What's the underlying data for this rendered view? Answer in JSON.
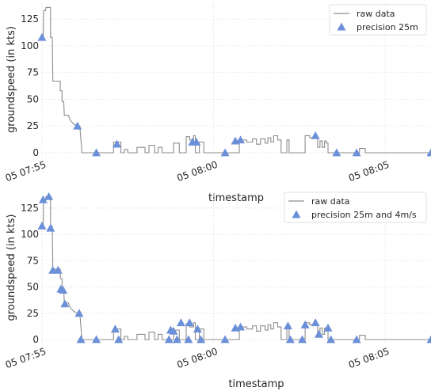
{
  "chart_data": [
    {
      "type": "line",
      "xlabel": "",
      "ylabel": "groundspeed (in kts)",
      "ylim": [
        -3,
        140
      ],
      "yticks": [
        0,
        25,
        50,
        75,
        100,
        125
      ],
      "xticks": [
        {
          "label": "05 07:55",
          "t": 0
        },
        {
          "label": "05 08:00",
          "t": 300
        },
        {
          "label": "05 08:05",
          "t": 600
        }
      ],
      "xlim": [
        0,
        680
      ],
      "grid": true,
      "legend_position": "top-right",
      "legend": [
        "raw data",
        "precision 25m"
      ],
      "series": [
        {
          "name": "raw data",
          "color": "#8c8c8c",
          "points": [
            [
              0,
              108
            ],
            [
              2,
              108
            ],
            [
              3,
              133
            ],
            [
              6,
              133
            ],
            [
              7,
              136
            ],
            [
              15,
              136
            ],
            [
              15,
              108
            ],
            [
              18,
              108
            ],
            [
              19,
              67
            ],
            [
              32,
              67
            ],
            [
              32,
              58
            ],
            [
              35,
              58
            ],
            [
              35,
              48
            ],
            [
              38,
              48
            ],
            [
              39,
              35
            ],
            [
              46,
              35
            ],
            [
              50,
              30
            ],
            [
              55,
              27
            ],
            [
              62,
              25
            ],
            [
              66,
              25
            ],
            [
              70,
              0
            ],
            [
              125,
              0
            ],
            [
              125,
              10
            ],
            [
              138,
              10
            ],
            [
              138,
              0
            ],
            [
              144,
              0
            ],
            [
              144,
              3
            ],
            [
              150,
              3
            ],
            [
              150,
              0
            ],
            [
              166,
              0
            ],
            [
              166,
              5
            ],
            [
              180,
              5
            ],
            [
              180,
              0
            ],
            [
              187,
              0
            ],
            [
              187,
              7
            ],
            [
              197,
              7
            ],
            [
              197,
              0
            ],
            [
              203,
              0
            ],
            [
              203,
              5
            ],
            [
              210,
              5
            ],
            [
              210,
              0
            ],
            [
              230,
              0
            ],
            [
              230,
              9
            ],
            [
              240,
              9
            ],
            [
              240,
              0
            ],
            [
              252,
              0
            ],
            [
              252,
              15
            ],
            [
              258,
              15
            ],
            [
              258,
              12
            ],
            [
              265,
              12
            ],
            [
              265,
              16
            ],
            [
              268,
              16
            ],
            [
              268,
              0
            ],
            [
              275,
              0
            ],
            [
              275,
              10
            ],
            [
              283,
              10
            ],
            [
              283,
              0
            ],
            [
              345,
              0
            ],
            [
              345,
              12
            ],
            [
              358,
              12
            ],
            [
              358,
              10
            ],
            [
              368,
              10
            ],
            [
              368,
              13
            ],
            [
              375,
              13
            ],
            [
              375,
              8
            ],
            [
              382,
              8
            ],
            [
              382,
              13
            ],
            [
              390,
              13
            ],
            [
              390,
              9
            ],
            [
              395,
              9
            ],
            [
              395,
              14
            ],
            [
              400,
              14
            ],
            [
              400,
              10
            ],
            [
              405,
              10
            ],
            [
              405,
              16
            ],
            [
              412,
              16
            ],
            [
              412,
              12
            ],
            [
              418,
              12
            ],
            [
              418,
              0
            ],
            [
              428,
              0
            ],
            [
              428,
              12
            ],
            [
              432,
              12
            ],
            [
              432,
              0
            ],
            [
              460,
              0
            ],
            [
              460,
              16
            ],
            [
              468,
              16
            ],
            [
              468,
              14
            ],
            [
              482,
              14
            ],
            [
              482,
              5
            ],
            [
              486,
              5
            ],
            [
              486,
              11
            ],
            [
              490,
              11
            ],
            [
              490,
              5
            ],
            [
              494,
              5
            ],
            [
              494,
              11
            ],
            [
              497,
              11
            ],
            [
              497,
              9
            ],
            [
              500,
              9
            ],
            [
              500,
              0
            ],
            [
              555,
              0
            ],
            [
              555,
              4
            ],
            [
              565,
              4
            ],
            [
              565,
              0
            ],
            [
              680,
              0
            ]
          ]
        },
        {
          "name": "precision 25m",
          "color": "#6b8fd9",
          "points": [
            [
              0,
              108
            ],
            [
              62,
              25
            ],
            [
              95,
              0
            ],
            [
              131,
              8
            ],
            [
              263,
              10
            ],
            [
              270,
              10
            ],
            [
              320,
              0
            ],
            [
              338,
              11
            ],
            [
              347,
              12
            ],
            [
              478,
              16
            ],
            [
              515,
              0
            ],
            [
              550,
              0
            ],
            [
              680,
              0
            ]
          ]
        }
      ]
    },
    {
      "type": "line",
      "xlabel": "timestamp",
      "ylabel": "groundspeed (in kts)",
      "ylim": [
        -3,
        140
      ],
      "yticks": [
        0,
        25,
        50,
        75,
        100,
        125
      ],
      "xticks": [
        {
          "label": "05 07:55",
          "t": 0
        },
        {
          "label": "05 08:00",
          "t": 300
        },
        {
          "label": "05 08:05",
          "t": 600
        }
      ],
      "xlim": [
        0,
        680
      ],
      "grid": true,
      "legend_position": "top-right",
      "legend": [
        "raw data",
        "precision 25m and 4m/s"
      ],
      "series": [
        {
          "name": "raw data",
          "color": "#8c8c8c",
          "points": [
            [
              0,
              108
            ],
            [
              2,
              108
            ],
            [
              3,
              133
            ],
            [
              6,
              133
            ],
            [
              7,
              136
            ],
            [
              15,
              136
            ],
            [
              15,
              108
            ],
            [
              18,
              108
            ],
            [
              19,
              67
            ],
            [
              32,
              67
            ],
            [
              32,
              58
            ],
            [
              35,
              58
            ],
            [
              35,
              48
            ],
            [
              38,
              48
            ],
            [
              39,
              35
            ],
            [
              46,
              35
            ],
            [
              50,
              30
            ],
            [
              55,
              27
            ],
            [
              62,
              25
            ],
            [
              66,
              25
            ],
            [
              70,
              0
            ],
            [
              125,
              0
            ],
            [
              125,
              10
            ],
            [
              138,
              10
            ],
            [
              138,
              0
            ],
            [
              144,
              0
            ],
            [
              144,
              3
            ],
            [
              150,
              3
            ],
            [
              150,
              0
            ],
            [
              166,
              0
            ],
            [
              166,
              5
            ],
            [
              180,
              5
            ],
            [
              180,
              0
            ],
            [
              187,
              0
            ],
            [
              187,
              7
            ],
            [
              197,
              7
            ],
            [
              197,
              0
            ],
            [
              203,
              0
            ],
            [
              203,
              5
            ],
            [
              210,
              5
            ],
            [
              210,
              0
            ],
            [
              230,
              0
            ],
            [
              230,
              9
            ],
            [
              240,
              9
            ],
            [
              240,
              0
            ],
            [
              252,
              0
            ],
            [
              252,
              15
            ],
            [
              258,
              15
            ],
            [
              258,
              12
            ],
            [
              265,
              12
            ],
            [
              265,
              16
            ],
            [
              268,
              16
            ],
            [
              268,
              0
            ],
            [
              275,
              0
            ],
            [
              275,
              10
            ],
            [
              283,
              10
            ],
            [
              283,
              0
            ],
            [
              345,
              0
            ],
            [
              345,
              12
            ],
            [
              358,
              12
            ],
            [
              358,
              10
            ],
            [
              368,
              10
            ],
            [
              368,
              13
            ],
            [
              375,
              13
            ],
            [
              375,
              8
            ],
            [
              382,
              8
            ],
            [
              382,
              13
            ],
            [
              390,
              13
            ],
            [
              390,
              9
            ],
            [
              395,
              9
            ],
            [
              395,
              14
            ],
            [
              400,
              14
            ],
            [
              400,
              10
            ],
            [
              405,
              10
            ],
            [
              405,
              16
            ],
            [
              412,
              16
            ],
            [
              412,
              12
            ],
            [
              418,
              12
            ],
            [
              418,
              0
            ],
            [
              428,
              0
            ],
            [
              428,
              12
            ],
            [
              432,
              12
            ],
            [
              432,
              0
            ],
            [
              460,
              0
            ],
            [
              460,
              16
            ],
            [
              468,
              16
            ],
            [
              468,
              14
            ],
            [
              482,
              14
            ],
            [
              482,
              5
            ],
            [
              486,
              5
            ],
            [
              486,
              11
            ],
            [
              490,
              11
            ],
            [
              490,
              5
            ],
            [
              494,
              5
            ],
            [
              494,
              11
            ],
            [
              497,
              11
            ],
            [
              497,
              9
            ],
            [
              500,
              9
            ],
            [
              500,
              0
            ],
            [
              555,
              0
            ],
            [
              555,
              4
            ],
            [
              565,
              4
            ],
            [
              565,
              0
            ],
            [
              680,
              0
            ]
          ]
        },
        {
          "name": "precision 25m and 4m/s",
          "color": "#6b8fd9",
          "points": [
            [
              0,
              108
            ],
            [
              2,
              133
            ],
            [
              12,
              136
            ],
            [
              15,
              106
            ],
            [
              19,
              66
            ],
            [
              28,
              66
            ],
            [
              33,
              48
            ],
            [
              37,
              47
            ],
            [
              40,
              34
            ],
            [
              65,
              25
            ],
            [
              68,
              0
            ],
            [
              95,
              0
            ],
            [
              128,
              10
            ],
            [
              134,
              0
            ],
            [
              222,
              0
            ],
            [
              225,
              9
            ],
            [
              230,
              8
            ],
            [
              236,
              0
            ],
            [
              243,
              16
            ],
            [
              256,
              0
            ],
            [
              258,
              16
            ],
            [
              272,
              10
            ],
            [
              278,
              0
            ],
            [
              320,
              0
            ],
            [
              338,
              11
            ],
            [
              347,
              12
            ],
            [
              430,
              13
            ],
            [
              434,
              0
            ],
            [
              455,
              0
            ],
            [
              460,
              14
            ],
            [
              478,
              16
            ],
            [
              484,
              5
            ],
            [
              500,
              11
            ],
            [
              505,
              0
            ],
            [
              550,
              0
            ],
            [
              680,
              0
            ]
          ]
        }
      ]
    }
  ]
}
